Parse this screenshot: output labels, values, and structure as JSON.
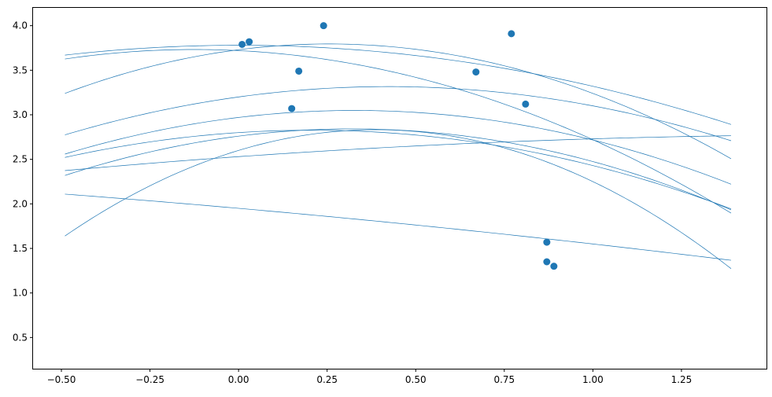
{
  "chart_data": {
    "type": "scatter",
    "title": "",
    "xlabel": "",
    "ylabel": "",
    "xlim": [
      -0.58,
      1.49
    ],
    "ylim": [
      0.15,
      4.2
    ],
    "x_ticks": [
      -0.5,
      -0.25,
      0.0,
      0.25,
      0.5,
      0.75,
      1.0,
      1.25
    ],
    "x_tick_labels": [
      "−0.50",
      "−0.25",
      "0.00",
      "0.25",
      "0.50",
      "0.75",
      "1.00",
      "1.25"
    ],
    "y_ticks": [
      0.5,
      1.0,
      1.5,
      2.0,
      2.5,
      3.0,
      3.5,
      4.0
    ],
    "y_tick_labels": [
      "0.5",
      "1.0",
      "1.5",
      "2.0",
      "2.5",
      "3.0",
      "3.5",
      "4.0"
    ],
    "grid": false,
    "colors": {
      "points": "#1f77b4",
      "curves": "#1f77b4",
      "axes": "#000000"
    },
    "points": [
      {
        "x": 0.01,
        "y": 3.79
      },
      {
        "x": 0.03,
        "y": 3.82
      },
      {
        "x": 0.24,
        "y": 4.0
      },
      {
        "x": 0.17,
        "y": 3.49
      },
      {
        "x": 0.15,
        "y": 3.07
      },
      {
        "x": 0.67,
        "y": 3.48
      },
      {
        "x": 0.77,
        "y": 3.91
      },
      {
        "x": 0.81,
        "y": 3.12
      },
      {
        "x": 0.87,
        "y": 1.57
      },
      {
        "x": 0.87,
        "y": 1.35
      },
      {
        "x": 0.89,
        "y": 1.3
      }
    ],
    "curve_x_range": [
      -0.49,
      1.39
    ],
    "curves": [
      {
        "a": -0.46,
        "b": 0.0,
        "c": 3.78
      },
      {
        "a": -0.8,
        "b": -0.2,
        "c": 3.72
      },
      {
        "a": -1.0,
        "b": 0.51,
        "c": 3.73
      },
      {
        "a": -0.65,
        "b": 0.55,
        "c": 3.2
      },
      {
        "a": -0.733,
        "b": 0.48,
        "c": 2.97
      },
      {
        "a": -1.55,
        "b": 1.2,
        "c": 2.6
      },
      {
        "a": -0.63,
        "b": 0.26,
        "c": 2.8
      },
      {
        "a": -0.795,
        "b": 0.51,
        "c": 2.76
      },
      {
        "a": -0.08,
        "b": 0.28,
        "c": 2.53
      },
      {
        "a": -0.05,
        "b": -0.35,
        "c": 1.95
      }
    ]
  }
}
